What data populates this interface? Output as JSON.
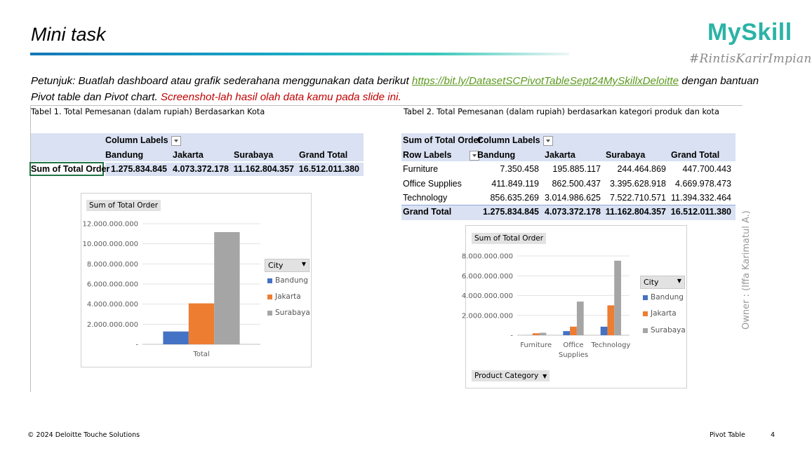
{
  "slide": {
    "title": "Mini task",
    "logo": "MySkill",
    "tagline": "#RintisKarirImpian",
    "instruction_prefix": "Petunjuk: Buatlah dashboard atau grafik sederahana menggunakan data berikut ",
    "instruction_link": "https://bit.ly/DatasetSCPivotTableSept24MySkillxDeloitte",
    "instruction_mid": " dengan bantuan Pivot table dan Pivot chart. ",
    "instruction_red": "Screenshot-lah hasil olah data kamu pada slide ini.",
    "owner": "Owner : (Iffa Karimatul A.)",
    "footer_left": "© 2024 Deloitte Touche Solutions",
    "footer_section": "Pivot Table",
    "page_number": "4"
  },
  "colors": {
    "bandung": "#4472c4",
    "jakarta": "#ed7d31",
    "surabaya": "#a5a5a5",
    "accent": "#2ab3a6"
  },
  "table1": {
    "caption": "Tabel 1. Total Pemesanan (dalam rupiah)  Berdasarkan Kota",
    "column_labels": "Column Labels",
    "headers": [
      "Bandung",
      "Jakarta",
      "Surabaya",
      "Grand Total"
    ],
    "row_label": "Sum of Total Order",
    "values": [
      "1.275.834.845",
      "4.073.372.178",
      "11.162.804.357",
      "16.512.011.380"
    ]
  },
  "table2": {
    "caption": "Tabel 2. Total Pemesanan (dalam rupiah) berdasarkan kategori produk dan kota",
    "sum_label": "Sum of Total Order",
    "column_labels": "Column Labels",
    "row_labels": "Row Labels",
    "headers": [
      "Bandung",
      "Jakarta",
      "Surabaya",
      "Grand Total"
    ],
    "rows": [
      {
        "label": "Furniture",
        "values": [
          "7.350.458",
          "195.885.117",
          "244.464.869",
          "447.700.443"
        ]
      },
      {
        "label": "Office Supplies",
        "values": [
          "411.849.119",
          "862.500.437",
          "3.395.628.918",
          "4.669.978.473"
        ]
      },
      {
        "label": "Technology",
        "values": [
          "856.635.269",
          "3.014.986.625",
          "7.522.710.571",
          "11.394.332.464"
        ]
      }
    ],
    "grand_total": {
      "label": "Grand Total",
      "values": [
        "1.275.834.845",
        "4.073.372.178",
        "11.162.804.357",
        "16.512.011.380"
      ]
    }
  },
  "chart_data": [
    {
      "type": "bar",
      "value_field": "Sum of Total Order",
      "categories": [
        "Total"
      ],
      "series": [
        {
          "name": "Bandung",
          "values": [
            1275834845
          ]
        },
        {
          "name": "Jakarta",
          "values": [
            4073372178
          ]
        },
        {
          "name": "Surabaya",
          "values": [
            11162804357
          ]
        }
      ],
      "ylim": [
        0,
        12000000000
      ],
      "yticks": [
        "-",
        "2.000.000.000",
        "4.000.000.000",
        "6.000.000.000",
        "8.000.000.000",
        "10.000.000.000",
        "12.000.000.000"
      ],
      "legend_title": "City",
      "legend_position": "right"
    },
    {
      "type": "bar",
      "value_field": "Sum of Total Order",
      "categories": [
        "Furniture",
        "Office Supplies",
        "Technology"
      ],
      "category_labels": [
        [
          "Furniture"
        ],
        [
          "Office",
          "Supplies"
        ],
        [
          "Technology"
        ]
      ],
      "series": [
        {
          "name": "Bandung",
          "values": [
            7350458,
            411849119,
            856635269
          ]
        },
        {
          "name": "Jakarta",
          "values": [
            195885117,
            862500437,
            3014986625
          ]
        },
        {
          "name": "Surabaya",
          "values": [
            244464869,
            3395628918,
            7522710571
          ]
        }
      ],
      "ylim": [
        0,
        8000000000
      ],
      "yticks": [
        "-",
        "2.000.000.000",
        "4.000.000.000",
        "6.000.000.000",
        "8.000.000.000"
      ],
      "legend_title": "City",
      "legend_position": "right",
      "axis_field": "Product Category"
    }
  ]
}
